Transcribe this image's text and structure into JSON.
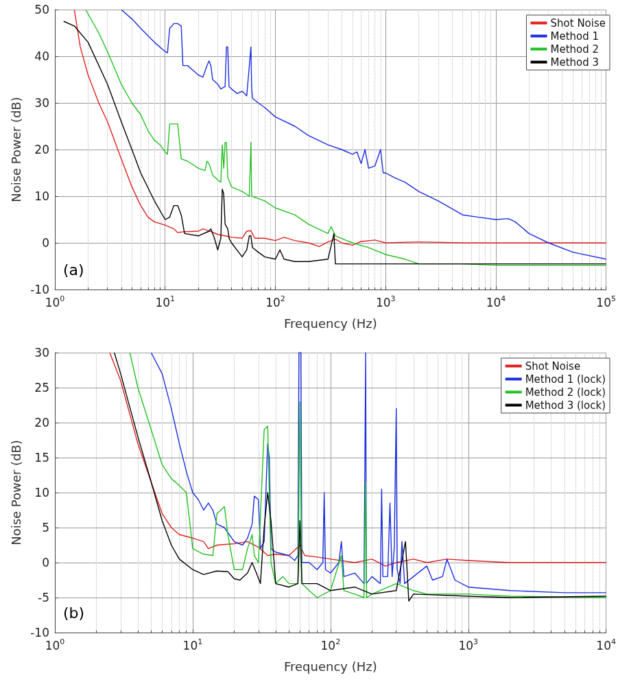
{
  "chart_data": [
    {
      "type": "line",
      "xlabel": "Frequency (Hz)",
      "ylabel": "Noise Power (dB)",
      "log": "x",
      "grid": true,
      "legend": "top right",
      "annotations": [
        "(a)"
      ],
      "xlim": [
        1,
        100000
      ],
      "xticks": [
        {
          "value": 1,
          "label": "10$^{0}$"
        },
        {
          "value": 10,
          "label": "10$^{1}$"
        },
        {
          "value": 100,
          "label": "10$^{2}$"
        },
        {
          "value": 1000,
          "label": "10$^{3}$"
        },
        {
          "value": 10000,
          "label": "10$^{4}$"
        },
        {
          "value": 100000,
          "label": "10$^{5}$"
        }
      ],
      "ylim": [
        -10,
        50
      ],
      "yticks": [
        -10,
        0,
        10,
        20,
        30,
        40,
        50
      ],
      "series": [
        {
          "name": "Shot Noise",
          "color": "#e02020",
          "x": [
            1.5,
            1.7,
            2,
            2.5,
            3,
            4,
            5,
            6,
            7,
            8,
            10,
            12,
            13,
            15,
            20,
            22,
            25,
            30,
            35,
            40,
            50,
            55,
            60,
            65,
            80,
            100,
            120,
            150,
            200,
            250,
            300,
            350,
            400,
            500,
            600,
            800,
            1000,
            2000,
            5000,
            10000,
            30000,
            100000
          ],
          "values": [
            50,
            42,
            36,
            30,
            26,
            18,
            12,
            8,
            5.5,
            4.5,
            3.8,
            3,
            2.2,
            2.4,
            2.5,
            3,
            2.6,
            1.8,
            1.5,
            1.2,
            1,
            2.5,
            2.6,
            1,
            1,
            0.5,
            1.2,
            0.5,
            0,
            -0.8,
            0.2,
            0.8,
            0,
            -0.5,
            0.3,
            0.6,
            0,
            0.2,
            0,
            0,
            0,
            0
          ]
        },
        {
          "name": "Method 1",
          "color": "#1a2de0",
          "x": [
            4,
            5,
            6,
            8,
            10,
            10.5,
            11,
            12,
            13,
            14,
            14.5,
            16,
            20,
            22,
            24,
            25,
            26,
            27,
            30,
            32,
            35,
            36,
            37,
            38,
            40,
            45,
            50,
            55,
            60,
            61,
            62,
            70,
            80,
            100,
            150,
            200,
            300,
            400,
            500,
            550,
            600,
            650,
            700,
            800,
            900,
            950,
            1000,
            1200,
            1500,
            2000,
            3000,
            5000,
            7000,
            10000,
            13000,
            15000,
            20000,
            30000,
            50000,
            100000
          ],
          "values": [
            50,
            48,
            46,
            43,
            41,
            40.7,
            46,
            47,
            47,
            46.5,
            38,
            38,
            36,
            35.5,
            38,
            39,
            38,
            35,
            34,
            33,
            33.5,
            42,
            42,
            33.5,
            33,
            32,
            32.5,
            31.5,
            42,
            33,
            31,
            30,
            29,
            27,
            25,
            23,
            21,
            20,
            19,
            19.5,
            17,
            20,
            16,
            16.5,
            20,
            15,
            15,
            14,
            13,
            11,
            9,
            6,
            5.5,
            5,
            5.2,
            4.5,
            2,
            0,
            -2,
            -3.5
          ]
        },
        {
          "name": "Method 2",
          "color": "#22c022",
          "x": [
            1.9,
            2.5,
            3,
            4,
            5,
            6,
            7,
            8,
            9,
            10,
            10.5,
            11,
            13,
            14,
            16,
            20,
            23,
            24,
            25,
            27,
            30,
            32,
            33,
            34,
            35,
            36,
            37,
            40,
            50,
            58,
            60,
            61,
            70,
            80,
            100,
            150,
            200,
            300,
            320,
            350,
            500,
            700,
            1000,
            1500,
            2000,
            5000,
            10000,
            100000
          ],
          "values": [
            50,
            45,
            41,
            34,
            30,
            27.5,
            24,
            22,
            21,
            19.5,
            19,
            25.5,
            25.5,
            18,
            17.5,
            16,
            15.5,
            17.5,
            17,
            14.5,
            13.5,
            13,
            21,
            16,
            21.5,
            21.5,
            14,
            12,
            11,
            10,
            21.5,
            10,
            9.5,
            9,
            7.5,
            6,
            4,
            2,
            3.5,
            1.5,
            0,
            -1,
            -2.5,
            -3.5,
            -4.5,
            -4.5,
            -4.8,
            -4.8
          ]
        },
        {
          "name": "Method 3",
          "color": "#000000",
          "x": [
            1.2,
            1.5,
            2,
            3,
            4,
            5,
            6,
            8,
            10,
            11,
            12,
            13,
            14,
            15,
            20,
            25,
            26,
            28,
            30,
            32,
            33,
            34,
            35,
            37,
            38,
            40,
            50,
            55,
            58,
            60,
            62,
            70,
            80,
            100,
            110,
            120,
            150,
            200,
            300,
            340,
            350,
            400,
            1000,
            5000,
            100000
          ],
          "values": [
            47.5,
            46.5,
            43,
            34,
            26,
            20,
            15,
            9,
            5,
            5.5,
            8,
            8,
            6,
            2,
            1.5,
            2.5,
            3,
            1,
            -1.5,
            1,
            11.5,
            10.5,
            4,
            3,
            1,
            0,
            -3,
            -1.5,
            1.5,
            1.5,
            -1,
            -2,
            -3,
            -3.5,
            -1.5,
            -3.5,
            -4,
            -4,
            -3.5,
            2,
            -4.5,
            -4.5,
            -4.5,
            -4.5,
            -4.5
          ]
        }
      ]
    },
    {
      "type": "line",
      "xlabel": "Frequency (Hz)",
      "ylabel": "Noise Power (dB)",
      "log": "x",
      "grid": true,
      "legend": "top right",
      "annotations": [
        "(b)"
      ],
      "xlim": [
        1,
        10000
      ],
      "xticks": [
        {
          "value": 1,
          "label": "10$^{0}$"
        },
        {
          "value": 10,
          "label": "10$^{1}$"
        },
        {
          "value": 100,
          "label": "10$^{2}$"
        },
        {
          "value": 1000,
          "label": "10$^{3}$"
        },
        {
          "value": 10000,
          "label": "10$^{4}$"
        }
      ],
      "ylim": [
        -10,
        30
      ],
      "yticks": [
        -10,
        -5,
        0,
        5,
        10,
        15,
        20,
        25,
        30
      ],
      "series": [
        {
          "name": "Shot Noise",
          "color": "#e02020",
          "x": [
            2.5,
            3,
            4,
            5,
            6,
            7,
            8,
            10,
            12,
            13,
            15,
            20,
            25,
            30,
            35,
            40,
            50,
            60,
            65,
            80,
            100,
            150,
            200,
            250,
            300,
            400,
            500,
            700,
            1000,
            2000,
            5000,
            10000
          ],
          "values": [
            30,
            26,
            17,
            11.5,
            7,
            5,
            4,
            3.5,
            3,
            2,
            2.5,
            2.7,
            3,
            2.2,
            1,
            1.2,
            1,
            2.5,
            1,
            0.8,
            0.5,
            0,
            0.5,
            -0.5,
            0,
            0.5,
            0,
            0.5,
            0.3,
            0,
            0,
            0
          ]
        },
        {
          "name": "Method 1 (lock)",
          "color": "#1a2de0",
          "x": [
            5,
            6,
            7,
            8,
            9,
            10,
            11,
            12,
            13,
            14,
            15,
            17,
            20,
            23,
            25,
            27,
            28,
            30,
            31,
            33,
            35,
            36,
            37,
            40,
            50,
            55,
            58,
            59,
            61,
            62,
            70,
            80,
            88,
            90,
            92,
            100,
            115,
            120,
            125,
            150,
            175,
            180,
            182,
            200,
            230,
            235,
            240,
            260,
            270,
            280,
            290,
            300,
            305,
            320,
            330,
            345,
            400,
            500,
            550,
            650,
            700,
            800,
            1000,
            2000,
            5000,
            10000
          ],
          "values": [
            30,
            27,
            22,
            17,
            13,
            10,
            9,
            7.5,
            8.5,
            7.5,
            5.5,
            5,
            3,
            2.5,
            3.5,
            5.5,
            9.5,
            9,
            2,
            3,
            17,
            15,
            2,
            1.5,
            1,
            0.3,
            1,
            30,
            30,
            0,
            0,
            -1,
            0,
            10,
            -1,
            -1.5,
            0,
            3,
            -2,
            -1.5,
            -3,
            30,
            -3,
            -2,
            -3,
            10.5,
            -2,
            -2,
            8.5,
            -2,
            2,
            22,
            -1,
            -3,
            3,
            -3,
            -2,
            -0.5,
            -2.5,
            -2,
            0.5,
            -2.5,
            -3.5,
            -4,
            -4.3,
            -4.3
          ]
        },
        {
          "name": "Method 2 (lock)",
          "color": "#22c022",
          "x": [
            3.5,
            4,
            5,
            6,
            7,
            8,
            9,
            9.5,
            10,
            12,
            14,
            15,
            17,
            18,
            20,
            23,
            25,
            27,
            28,
            30,
            33,
            35,
            37,
            40,
            45,
            50,
            58,
            60,
            62,
            70,
            80,
            100,
            120,
            125,
            150,
            175,
            180,
            183,
            200,
            300,
            400,
            500,
            1000,
            2000,
            10000
          ],
          "values": [
            30,
            25,
            19,
            14,
            12,
            11,
            10,
            6,
            2,
            1.2,
            1,
            7,
            8,
            4,
            -1,
            -1,
            2,
            4,
            1,
            0,
            19,
            19.5,
            0,
            -3,
            -2,
            -3,
            -3,
            23,
            -3,
            -4,
            -5,
            -4,
            1,
            -4,
            -4.5,
            -5,
            11.5,
            -5,
            -4.5,
            -3,
            -4,
            -4.5,
            -4.5,
            -4.8,
            -5
          ]
        },
        {
          "name": "Method 3 (lock)",
          "color": "#000000",
          "x": [
            2.7,
            3,
            4,
            5,
            6,
            7,
            8,
            10,
            12,
            15,
            18,
            20,
            22,
            25,
            27,
            29,
            31,
            33,
            35,
            37,
            40,
            50,
            58,
            60,
            62,
            80,
            100,
            150,
            200,
            300,
            350,
            370,
            400,
            1000,
            2000,
            10000
          ],
          "values": [
            30,
            27,
            18,
            11.5,
            6,
            2.5,
            0.5,
            -1,
            -1.7,
            -1.2,
            -1.3,
            -2.3,
            -2.5,
            -1.5,
            0,
            -1.5,
            -3,
            5,
            10,
            6,
            -3,
            -3.5,
            -3,
            6,
            -3,
            -3,
            -4,
            -3.5,
            -4.5,
            -4,
            3,
            -5.5,
            -4.5,
            -4.8,
            -5,
            -4.8
          ]
        }
      ]
    }
  ]
}
